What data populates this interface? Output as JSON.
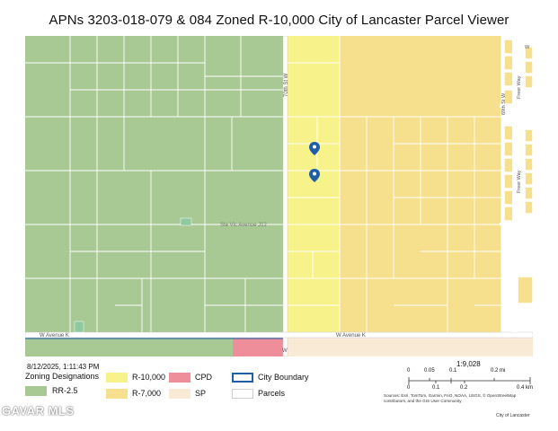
{
  "title": "APNs 3203-018-079 & 084 Zoned R-10,000 City of Lancaster Parcel Viewer",
  "timestamp": "8/12/2025, 1:11:43 PM",
  "map": {
    "streets": {
      "west_70th": "70th St W",
      "west_ave_j12": "Ste Vic Avenue J12",
      "west_ave_k_left": "W Avenue K",
      "west_ave_k_right": "W Avenue K",
      "freer_way_top": "Freer Way",
      "freer_way_mid": "Freer Way",
      "sixtyninth": "69th St W",
      "w_small_top": "W",
      "w_small_bottom": "W"
    },
    "markers": [
      {
        "name": "parcel-marker",
        "icon": "map-pin-icon"
      },
      {
        "name": "parcel-marker",
        "icon": "map-pin-icon"
      }
    ],
    "colors": {
      "rr25": "#a9c994",
      "r10000": "#f8f28a",
      "r7000": "#f6e08e",
      "cpd": "#ee8e9b",
      "sp": "#f9ead6",
      "city_boundary": "#1f5fa8",
      "parcels": "#ffffff"
    }
  },
  "legend": {
    "heading": "Zoning Designations",
    "items": [
      {
        "label": "RR-2.5",
        "color": "#a9c994"
      },
      {
        "label": "R-10,000",
        "color": "#f8f28a"
      },
      {
        "label": "R-7,000",
        "color": "#f6e08e"
      },
      {
        "label": "CPD",
        "color": "#ee8e9b"
      },
      {
        "label": "SP",
        "color": "#f9ead6"
      },
      {
        "label": "City Boundary",
        "color": "#1f5fa8"
      },
      {
        "label": "Parcels",
        "color": "#ffffff"
      }
    ]
  },
  "scale": {
    "ratio": "1:9,028",
    "mi_ticks": [
      "0",
      "0.05",
      "0.1",
      "0.2 mi"
    ],
    "km_ticks": [
      "0",
      "0.1",
      "0.2",
      "0.4 km"
    ]
  },
  "attribution": "Sources: Esri, TomTom, Garmin, FAO, NOAA, USGS, © OpenStreetMap contributors, and the GIS User Community",
  "credit": "City of Lancaster",
  "watermark": "GAVAR MLS"
}
